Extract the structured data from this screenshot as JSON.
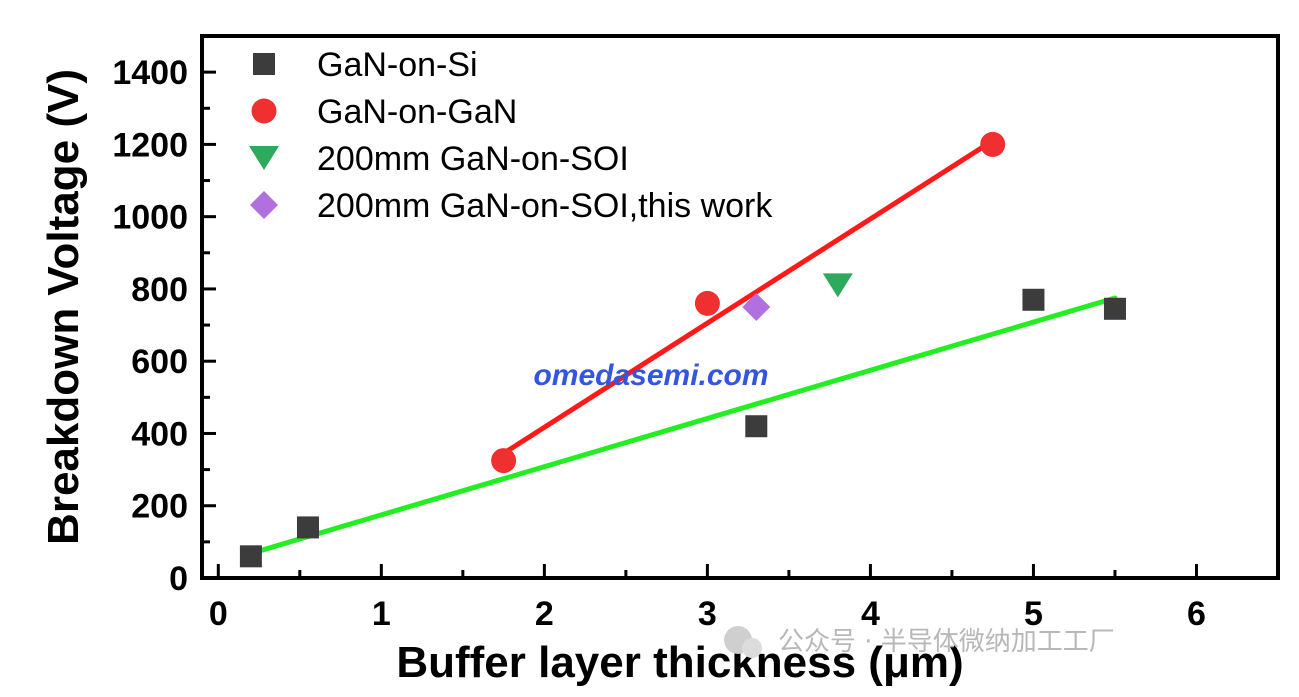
{
  "chart_data": {
    "type": "scatter",
    "xlabel": "Buffer layer thickness (μm)",
    "ylabel": "Breakdown Voltage (V)",
    "xlim": [
      -0.1,
      6.5
    ],
    "ylim": [
      0,
      1500
    ],
    "xticks": [
      0,
      1,
      2,
      3,
      4,
      5,
      6
    ],
    "yticks": [
      0,
      200,
      400,
      600,
      800,
      1000,
      1200,
      1400
    ],
    "legend_position": "top-left",
    "series": [
      {
        "name": "GaN-on-Si",
        "marker": "square",
        "color": "#3c3c3c",
        "x": [
          0.2,
          0.55,
          3.3,
          5.0,
          5.5
        ],
        "y": [
          60,
          140,
          420,
          770,
          745
        ]
      },
      {
        "name": "GaN-on-GaN",
        "marker": "circle",
        "color": "#f03030",
        "x": [
          1.75,
          3.0,
          4.75
        ],
        "y": [
          325,
          760,
          1200
        ]
      },
      {
        "name": "200mm GaN-on-SOI",
        "marker": "triangle-down",
        "color": "#2eaa5c",
        "x": [
          3.8
        ],
        "y": [
          810
        ]
      },
      {
        "name": "200mm GaN-on-SOI,this work",
        "marker": "diamond",
        "color": "#b070e0",
        "x": [
          3.3
        ],
        "y": [
          750
        ]
      }
    ],
    "fit_lines": [
      {
        "color": "#ff1a1a",
        "x": [
          1.75,
          4.75
        ],
        "y": [
          345,
          1210
        ]
      },
      {
        "color": "#22ee22",
        "x": [
          0.2,
          5.5
        ],
        "y": [
          68,
          775
        ]
      }
    ],
    "annotations": [
      "omedasemi.com"
    ]
  },
  "footer": {
    "watermark": "公众号 · 半导体微纳加工工厂"
  }
}
